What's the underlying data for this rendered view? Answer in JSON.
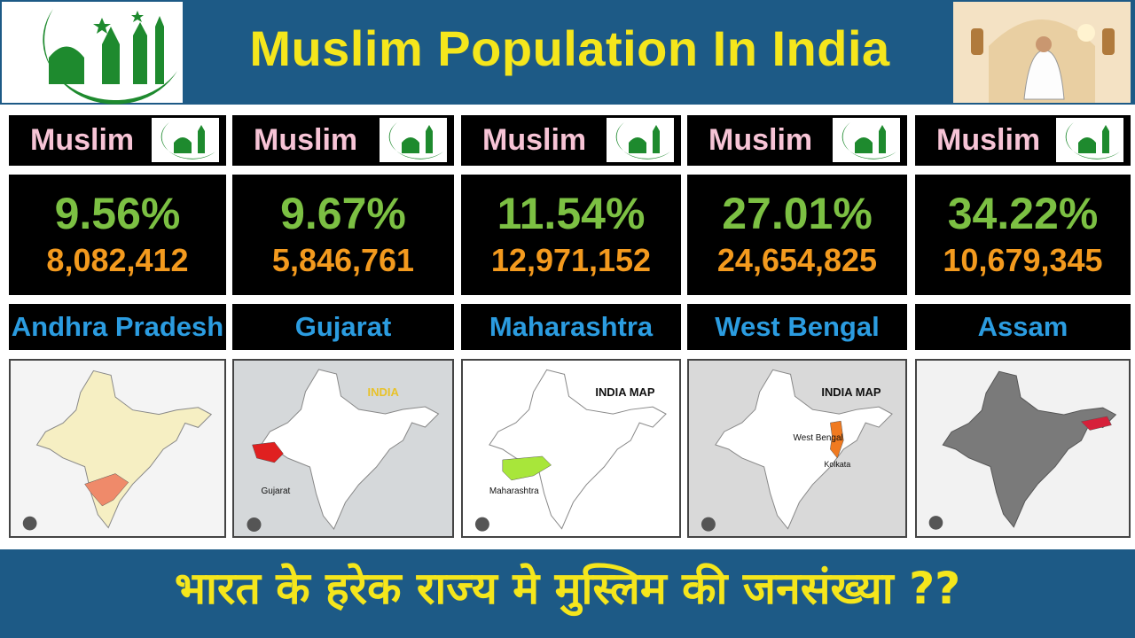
{
  "header": {
    "title": "Muslim Population In India"
  },
  "cards": [
    {
      "label": "Muslim",
      "percent": "9.56%",
      "population": "8,082,412",
      "state": "Andhra Pradesh",
      "map_texts": []
    },
    {
      "label": "Muslim",
      "percent": "9.67%",
      "population": "5,846,761",
      "state": "Gujarat",
      "map_texts": [
        "INDIA",
        "Gujarat"
      ]
    },
    {
      "label": "Muslim",
      "percent": "11.54%",
      "population": "12,971,152",
      "state": "Maharashtra",
      "map_texts": [
        "INDIA MAP",
        "Maharashtra"
      ]
    },
    {
      "label": "Muslim",
      "percent": "27.01%",
      "population": "24,654,825",
      "state": "West Bengal",
      "map_texts": [
        "INDIA MAP",
        "West Bengal",
        "Kolkata"
      ]
    },
    {
      "label": "Muslim",
      "percent": "34.22%",
      "population": "10,679,345",
      "state": "Assam",
      "map_texts": []
    }
  ],
  "footer": {
    "text": "भारत के हरेक राज्य मे मुस्लिम की जनसंख्या ??"
  }
}
